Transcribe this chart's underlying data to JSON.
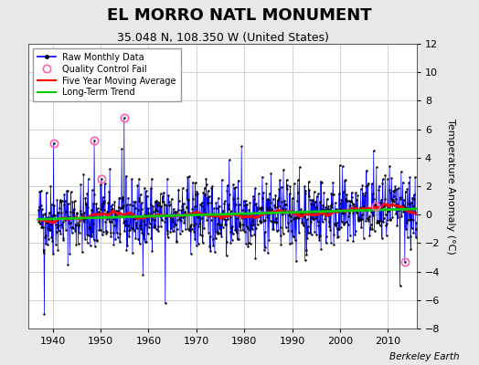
{
  "title": "EL MORRO NATL MONUMENT",
  "subtitle": "35.048 N, 108.350 W (United States)",
  "ylabel": "Temperature Anomaly (°C)",
  "watermark": "Berkeley Earth",
  "xlim": [
    1935,
    2016
  ],
  "ylim": [
    -8,
    12
  ],
  "yticks": [
    -8,
    -6,
    -4,
    -2,
    0,
    2,
    4,
    6,
    8,
    10,
    12
  ],
  "xticks": [
    1940,
    1950,
    1960,
    1970,
    1980,
    1990,
    2000,
    2010
  ],
  "start_year": 1937,
  "end_year": 2015,
  "raw_color": "#0000ff",
  "ma_color": "#ff0000",
  "trend_color": "#00cc00",
  "qc_color": "#ff69b4",
  "fig_bg_color": "#e8e8e8",
  "plot_bg_color": "#ffffff",
  "seed": 42,
  "title_fontsize": 13,
  "subtitle_fontsize": 9,
  "ylabel_fontsize": 8,
  "tick_fontsize": 8
}
